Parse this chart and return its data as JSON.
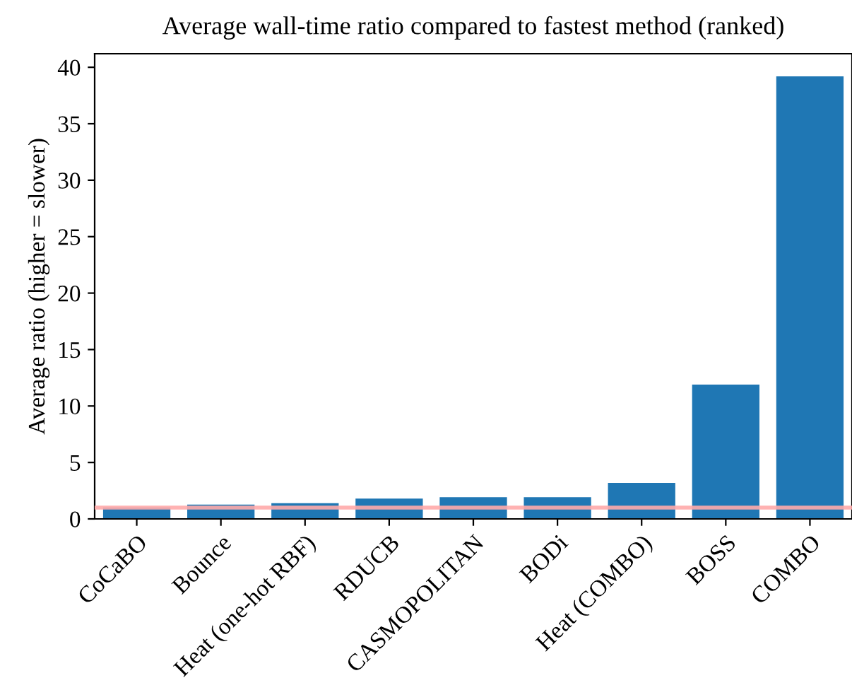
{
  "chart_data": {
    "type": "bar",
    "title": "Average wall-time ratio compared to fastest method (ranked)",
    "ylabel": "Average ratio (higher = slower)",
    "categories": [
      "CoCaBO",
      "Bounce",
      "Heat (one-hot RBF)",
      "RDUCB",
      "CASMOPOLITAN",
      "BODi",
      "Heat (COMBO)",
      "BOSS",
      "COMBO"
    ],
    "values": [
      1.02,
      1.27,
      1.4,
      1.8,
      1.93,
      1.93,
      3.2,
      11.9,
      39.2
    ],
    "color": "#1f77b4",
    "ylim": [
      0,
      41.2
    ],
    "yticks": [
      0,
      5,
      10,
      15,
      20,
      25,
      30,
      35,
      40
    ],
    "ref_lines": [
      {
        "axis": "y",
        "value": 1,
        "color": "#ffaaaa"
      }
    ],
    "grid": false
  }
}
